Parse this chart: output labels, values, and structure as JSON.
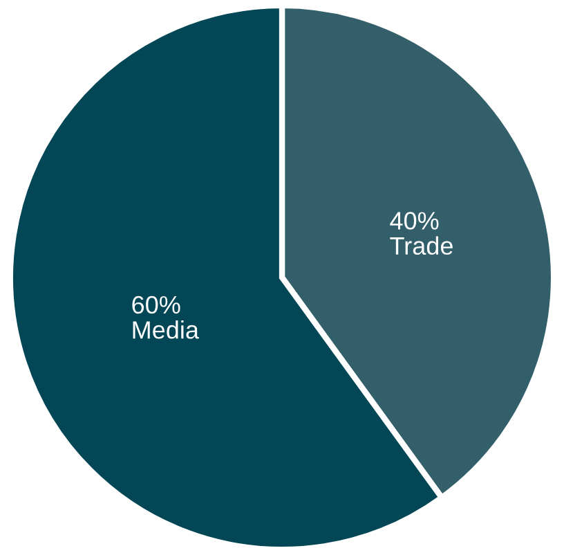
{
  "chart_data": {
    "type": "pie",
    "categories": [
      "Trade",
      "Media"
    ],
    "values": [
      40,
      60
    ],
    "value_labels": [
      "40%",
      "60%"
    ],
    "colors": [
      "#335f6b",
      "#034656"
    ]
  }
}
